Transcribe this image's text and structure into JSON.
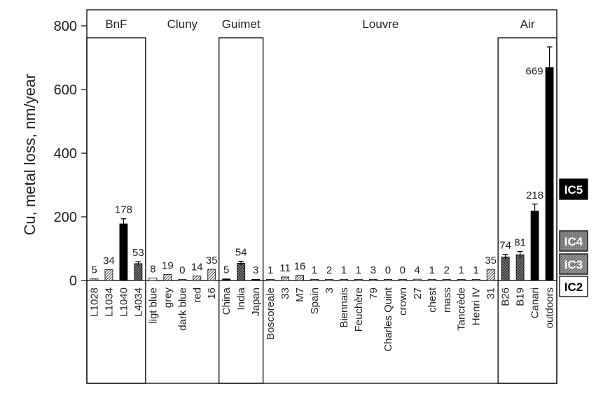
{
  "chart_data": {
    "type": "bar",
    "ylabel": "Cu, metal loss, nm/year",
    "ylim": [
      0,
      800
    ],
    "yticks": [
      0,
      200,
      400,
      600,
      800
    ],
    "grid": false,
    "groups": [
      {
        "name": "BnF",
        "boxed": true,
        "categories": [
          "L1028",
          "L1034",
          "L1040",
          "L4034"
        ],
        "values": [
          5,
          34,
          178,
          53
        ],
        "labels": [
          "5",
          "34",
          "178",
          "53"
        ],
        "classes": [
          "IC3",
          "IC3",
          "IC5",
          "IC4"
        ]
      },
      {
        "name": "Cluny",
        "boxed": false,
        "categories": [
          "ligt blue",
          "grey",
          "dark blue",
          "red",
          "16"
        ],
        "values": [
          8,
          19,
          0,
          14,
          35
        ],
        "labels": [
          "8",
          "19",
          "0",
          "14",
          "35"
        ],
        "classes": [
          "IC2",
          "IC3",
          "IC2",
          "IC3",
          "IC3"
        ]
      },
      {
        "name": "Guimet",
        "boxed": true,
        "categories": [
          "China",
          "India",
          "Japan"
        ],
        "values": [
          5,
          54,
          3
        ],
        "labels": [
          "5",
          "54",
          "3"
        ],
        "classes": [
          "IC5",
          "IC4",
          "IC5"
        ]
      },
      {
        "name": "Louvre",
        "boxed": false,
        "categories": [
          "Boscoreale",
          "33",
          "M7",
          "Spain",
          "3",
          "Biennais",
          "Feuchère",
          "79",
          "Charles Quint",
          "crown",
          "27",
          "chest",
          "mass",
          "Tancrède",
          "Henri IV",
          "31"
        ],
        "values": [
          1,
          11,
          16,
          1,
          2,
          1,
          1,
          3,
          0,
          0,
          4,
          1,
          2,
          1,
          1,
          35
        ],
        "labels": [
          "1",
          "11",
          "16",
          "1",
          "2",
          "1",
          "1",
          "3",
          "0",
          "0",
          "4",
          "1",
          "2",
          "1",
          "1",
          "35"
        ],
        "classes": [
          "IC2",
          "IC3",
          "IC3",
          "IC2",
          "IC2",
          "IC2",
          "IC2",
          "IC2",
          "IC2",
          "IC2",
          "IC2",
          "IC2",
          "IC2",
          "IC2",
          "IC2",
          "IC3"
        ]
      },
      {
        "name": "Air",
        "boxed": true,
        "categories": [
          "B26",
          "B19",
          "Canari",
          "outdoors"
        ],
        "values": [
          74,
          81,
          218,
          669
        ],
        "labels": [
          "74",
          "81",
          "218",
          "669"
        ],
        "classes": [
          "IC4",
          "IC4",
          "IC5",
          "IC5"
        ],
        "errors": [
          8,
          10,
          22,
          65
        ]
      }
    ],
    "error_bars": {
      "L1040": 16,
      "L4034": 6,
      "India": 6,
      "B26": 8,
      "B19": 10,
      "Canari": 22,
      "outdoors": 65
    },
    "corrosivity_classes": [
      {
        "name": "IC5",
        "fill": "#000000",
        "text_color": "#ffffff"
      },
      {
        "name": "IC4",
        "fill": "#7a7a7a",
        "text_color": "#ffffff"
      },
      {
        "name": "IC3",
        "fill": "#bdbdbd",
        "text_color": "#ffffff"
      },
      {
        "name": "IC2",
        "fill": "#ffffff",
        "text_color": "#000000"
      }
    ],
    "colors": {
      "IC5": "#000000",
      "IC4": "#7a7a7a",
      "IC3": "#bdbdbd",
      "IC2": "#ffffff"
    }
  }
}
